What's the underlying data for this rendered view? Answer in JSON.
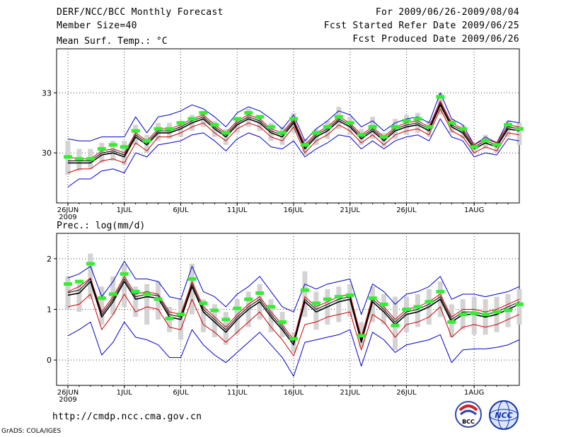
{
  "header": {
    "title": "DERF/NCC/BCC Monthly Forecast",
    "member_size": "Member Size=40",
    "period": "For 2009/06/26-2009/08/04",
    "fcst_started": "Fcst Started Refer Date 2009/06/25",
    "fcst_produced": "Fcst Produced Date 2009/06/26"
  },
  "footer": {
    "url": "http://cmdp.ncc.cma.gov.cn",
    "grads": "GrADS: COLA/IGES",
    "logo_bcc": "BCC",
    "logo_ncc": "NCC"
  },
  "colors": {
    "ensemble_mean": "#000000",
    "inner_range": "#cc0000",
    "outer_range": "#0000cc",
    "spread_bar": "#d3d3d3",
    "observed_marker": "#33ee33",
    "grid": "#444444"
  },
  "chart_data": [
    {
      "type": "line",
      "panel": "top",
      "title": "Mean Surf. Temp.: °C",
      "xlabel": "",
      "ylabel": "°C",
      "x_ticks": [
        {
          "day": 0,
          "label": "26JUN",
          "sub": "2009"
        },
        {
          "day": 5,
          "label": "1JUL"
        },
        {
          "day": 10,
          "label": "6JUL"
        },
        {
          "day": 15,
          "label": "11JUL"
        },
        {
          "day": 20,
          "label": "16JUL"
        },
        {
          "day": 25,
          "label": "21JUL"
        },
        {
          "day": 30,
          "label": "26JUL"
        },
        {
          "day": 36,
          "label": "1AUG"
        }
      ],
      "y_ticks": [
        30,
        33
      ],
      "ylim": [
        27.5,
        35.2
      ],
      "xlim": [
        -1,
        40
      ],
      "grid": true,
      "series": [
        {
          "name": "ensemble mean",
          "role": "mean",
          "values": [
            29.5,
            29.5,
            29.5,
            29.9,
            30.0,
            29.8,
            30.8,
            30.4,
            31.0,
            31.0,
            31.2,
            31.5,
            31.7,
            31.2,
            30.8,
            31.4,
            31.7,
            31.5,
            31.0,
            30.8,
            31.5,
            30.2,
            30.8,
            31.1,
            31.6,
            31.3,
            30.7,
            31.1,
            30.6,
            31.1,
            31.3,
            31.4,
            31.1,
            32.4,
            31.3,
            31.0,
            30.2,
            30.5,
            30.3,
            31.2,
            31.1
          ]
        },
        {
          "name": "upper black",
          "role": "mean_upper",
          "values": [
            29.6,
            29.6,
            29.6,
            30.0,
            30.1,
            29.9,
            30.9,
            30.5,
            31.1,
            31.1,
            31.3,
            31.6,
            31.8,
            31.3,
            30.9,
            31.5,
            31.8,
            31.6,
            31.1,
            30.9,
            31.6,
            30.3,
            30.9,
            31.2,
            31.7,
            31.4,
            30.8,
            31.2,
            30.7,
            31.2,
            31.4,
            31.5,
            31.2,
            32.5,
            31.4,
            31.1,
            30.3,
            30.6,
            30.4,
            31.3,
            31.2
          ]
        },
        {
          "name": "lower red",
          "role": "inner",
          "values": [
            29.0,
            29.2,
            29.2,
            29.6,
            29.7,
            29.5,
            30.5,
            30.1,
            30.8,
            30.8,
            31.0,
            31.3,
            31.5,
            31.0,
            30.6,
            31.2,
            31.5,
            31.3,
            30.8,
            30.6,
            31.3,
            30.0,
            30.6,
            30.9,
            31.4,
            31.1,
            30.5,
            30.9,
            30.4,
            30.9,
            31.1,
            31.2,
            30.9,
            32.2,
            31.1,
            30.8,
            30.0,
            30.3,
            30.1,
            31.0,
            30.9
          ]
        },
        {
          "name": "upper red",
          "role": "inner",
          "values": [
            29.8,
            29.7,
            29.7,
            30.1,
            30.2,
            30.0,
            31.0,
            30.6,
            31.2,
            31.2,
            31.4,
            31.7,
            31.9,
            31.4,
            31.0,
            31.6,
            31.9,
            31.7,
            31.2,
            31.0,
            31.7,
            30.4,
            31.0,
            31.3,
            31.8,
            31.5,
            30.9,
            31.3,
            30.8,
            31.3,
            31.5,
            31.6,
            31.3,
            32.6,
            31.5,
            31.2,
            30.4,
            30.7,
            30.5,
            31.4,
            31.3
          ]
        },
        {
          "name": "lower blue",
          "role": "outer",
          "values": [
            28.3,
            28.7,
            28.7,
            29.1,
            29.2,
            29.0,
            30.0,
            29.8,
            30.4,
            30.5,
            30.6,
            30.9,
            31.0,
            30.6,
            30.1,
            30.7,
            31.0,
            30.8,
            30.3,
            30.2,
            30.6,
            29.8,
            30.2,
            30.5,
            30.9,
            30.8,
            30.2,
            30.6,
            30.2,
            30.6,
            30.8,
            30.9,
            30.6,
            31.7,
            30.8,
            30.6,
            29.8,
            30.0,
            29.9,
            30.7,
            30.6
          ]
        },
        {
          "name": "upper blue",
          "role": "outer",
          "values": [
            30.7,
            30.6,
            30.6,
            30.8,
            30.8,
            30.8,
            31.8,
            31.0,
            31.8,
            31.9,
            32.1,
            32.4,
            32.2,
            31.8,
            31.3,
            32.0,
            32.3,
            32.1,
            31.7,
            31.2,
            31.9,
            30.6,
            31.2,
            31.6,
            32.1,
            31.9,
            31.3,
            31.6,
            31.1,
            31.5,
            31.7,
            31.8,
            31.5,
            33.0,
            31.7,
            31.4,
            30.4,
            30.8,
            30.5,
            31.6,
            31.5
          ]
        },
        {
          "name": "spread low",
          "role": "spread_low",
          "values": [
            28.9,
            29.1,
            29.2,
            29.5,
            29.6,
            29.4,
            30.4,
            30.0,
            30.6,
            30.7,
            30.8,
            31.1,
            31.3,
            30.8,
            30.4,
            31.0,
            31.3,
            31.1,
            30.6,
            30.4,
            31.0,
            29.9,
            30.4,
            30.7,
            31.2,
            30.9,
            30.4,
            30.7,
            30.3,
            30.7,
            30.9,
            31.0,
            30.8,
            31.9,
            31.0,
            30.7,
            30.0,
            30.2,
            30.0,
            30.8,
            30.4
          ]
        },
        {
          "name": "spread high",
          "role": "spread_high",
          "values": [
            30.6,
            30.2,
            30.2,
            30.5,
            30.6,
            30.6,
            31.4,
            30.9,
            31.5,
            31.5,
            31.6,
            31.9,
            32.1,
            31.6,
            31.2,
            31.8,
            32.2,
            31.9,
            31.5,
            31.3,
            32.0,
            30.7,
            31.2,
            31.6,
            32.3,
            31.8,
            31.2,
            31.8,
            31.0,
            31.7,
            31.9,
            32.0,
            31.6,
            33.0,
            31.7,
            31.4,
            30.5,
            30.9,
            30.6,
            31.6,
            31.5
          ]
        },
        {
          "name": "observed",
          "role": "marker",
          "values": [
            29.8,
            29.7,
            29.7,
            30.2,
            30.4,
            30.3,
            31.1,
            30.6,
            31.2,
            31.2,
            31.5,
            31.7,
            32.0,
            31.4,
            31.0,
            31.7,
            32.0,
            31.8,
            31.3,
            31.0,
            31.7,
            30.4,
            31.0,
            31.3,
            31.8,
            31.5,
            30.9,
            31.3,
            30.8,
            31.3,
            31.6,
            31.7,
            31.3,
            32.8,
            31.5,
            31.2,
            30.3,
            30.6,
            30.4,
            31.4,
            31.2
          ]
        }
      ]
    },
    {
      "type": "line",
      "panel": "bottom",
      "title": "Prec.: log(mm/d)",
      "xlabel": "",
      "ylabel": "log(mm/d)",
      "x_ticks": [
        {
          "day": 0,
          "label": "26JUN",
          "sub": "2009"
        },
        {
          "day": 5,
          "label": "1JUL"
        },
        {
          "day": 10,
          "label": "6JUL"
        },
        {
          "day": 15,
          "label": "11JUL"
        },
        {
          "day": 20,
          "label": "16JUL"
        },
        {
          "day": 25,
          "label": "21JUL"
        },
        {
          "day": 30,
          "label": "26JUL"
        },
        {
          "day": 36,
          "label": "1AUG"
        }
      ],
      "y_ticks": [
        0,
        1,
        2
      ],
      "ylim": [
        -0.5,
        2.5
      ],
      "xlim": [
        -1,
        40
      ],
      "grid": true,
      "series": [
        {
          "name": "ensemble mean",
          "role": "mean",
          "values": [
            1.28,
            1.32,
            1.55,
            0.85,
            1.15,
            1.55,
            1.2,
            1.25,
            1.22,
            0.85,
            0.8,
            1.45,
            0.95,
            0.75,
            0.55,
            0.8,
            1.0,
            1.15,
            0.85,
            0.6,
            0.3,
            1.15,
            0.95,
            1.05,
            1.15,
            1.2,
            0.35,
            1.15,
            0.95,
            0.7,
            0.9,
            0.95,
            1.05,
            1.2,
            0.75,
            0.9,
            0.9,
            0.85,
            0.9,
            1.0,
            1.1
          ]
        },
        {
          "name": "upper black",
          "role": "mean_upper",
          "values": [
            1.33,
            1.38,
            1.6,
            0.9,
            1.2,
            1.6,
            1.25,
            1.3,
            1.27,
            0.9,
            0.85,
            1.5,
            1.0,
            0.8,
            0.6,
            0.85,
            1.05,
            1.2,
            0.9,
            0.65,
            0.35,
            1.2,
            1.0,
            1.1,
            1.2,
            1.25,
            0.4,
            1.2,
            1.0,
            0.75,
            0.95,
            1.0,
            1.1,
            1.25,
            0.8,
            0.95,
            0.95,
            0.9,
            0.95,
            1.05,
            1.15
          ]
        },
        {
          "name": "lower red",
          "role": "inner",
          "values": [
            1.05,
            1.1,
            1.3,
            0.6,
            0.9,
            1.3,
            0.95,
            1.05,
            1.0,
            0.65,
            0.6,
            1.2,
            0.7,
            0.55,
            0.35,
            0.55,
            0.75,
            0.95,
            0.65,
            0.4,
            0.08,
            0.7,
            0.75,
            0.85,
            0.9,
            0.95,
            0.2,
            0.9,
            0.75,
            0.45,
            0.7,
            0.75,
            0.85,
            1.05,
            0.45,
            0.65,
            0.7,
            0.65,
            0.7,
            0.8,
            0.9
          ]
        },
        {
          "name": "upper red",
          "role": "inner",
          "values": [
            1.35,
            1.45,
            1.62,
            0.95,
            1.25,
            1.65,
            1.3,
            1.35,
            1.3,
            0.95,
            0.9,
            1.55,
            1.05,
            0.85,
            0.65,
            0.9,
            1.1,
            1.25,
            0.95,
            0.7,
            0.4,
            1.25,
            1.05,
            1.15,
            1.25,
            1.3,
            0.45,
            1.25,
            1.05,
            0.8,
            1.0,
            1.05,
            1.15,
            1.3,
            0.85,
            1.0,
            1.0,
            0.95,
            1.0,
            1.1,
            1.2
          ]
        },
        {
          "name": "lower blue",
          "role": "outer",
          "values": [
            0.48,
            0.6,
            0.75,
            0.1,
            0.35,
            0.75,
            0.45,
            0.4,
            0.3,
            0.05,
            0.05,
            0.6,
            0.3,
            0.1,
            -0.05,
            0.15,
            0.35,
            0.55,
            0.3,
            0.05,
            -0.32,
            0.35,
            0.4,
            0.45,
            0.5,
            0.6,
            -0.12,
            0.55,
            0.4,
            0.15,
            0.3,
            0.35,
            0.4,
            0.5,
            -0.05,
            0.2,
            0.22,
            0.22,
            0.25,
            0.3,
            0.4
          ]
        },
        {
          "name": "upper blue",
          "role": "outer",
          "values": [
            1.62,
            1.7,
            1.85,
            1.25,
            1.55,
            1.95,
            1.6,
            1.6,
            1.55,
            1.25,
            1.2,
            1.85,
            1.35,
            1.25,
            1.05,
            1.3,
            1.45,
            1.65,
            1.35,
            1.05,
            0.95,
            1.5,
            1.4,
            1.5,
            1.55,
            1.6,
            0.9,
            1.5,
            1.35,
            1.1,
            1.3,
            1.35,
            1.45,
            1.65,
            1.2,
            1.3,
            1.3,
            1.25,
            1.3,
            1.35,
            1.45
          ]
        },
        {
          "name": "spread low",
          "role": "spread_low",
          "values": [
            1.0,
            0.95,
            1.2,
            0.7,
            0.9,
            1.05,
            0.85,
            0.7,
            0.8,
            0.55,
            0.4,
            0.9,
            0.55,
            0.45,
            0.3,
            0.5,
            0.65,
            0.8,
            0.55,
            0.45,
            0.15,
            0.85,
            0.6,
            0.7,
            0.75,
            0.85,
            0.25,
            0.75,
            0.7,
            0.2,
            0.55,
            0.65,
            0.7,
            0.85,
            0.45,
            0.6,
            0.5,
            0.5,
            0.55,
            0.65,
            0.7
          ]
        },
        {
          "name": "spread high",
          "role": "spread_high",
          "values": [
            1.65,
            1.55,
            2.1,
            1.45,
            1.65,
            1.9,
            1.45,
            1.5,
            1.55,
            1.05,
            1.2,
            1.9,
            1.2,
            1.1,
            0.95,
            1.2,
            1.35,
            1.5,
            1.2,
            0.95,
            0.55,
            1.75,
            1.35,
            1.4,
            1.45,
            1.5,
            0.75,
            1.45,
            1.3,
            1.25,
            1.25,
            1.3,
            1.4,
            1.55,
            1.1,
            1.2,
            1.25,
            1.2,
            1.25,
            1.3,
            1.4
          ]
        },
        {
          "name": "observed",
          "role": "marker",
          "values": [
            1.5,
            1.55,
            1.9,
            1.22,
            1.3,
            1.7,
            1.35,
            1.3,
            1.2,
            0.82,
            0.9,
            1.6,
            1.12,
            0.98,
            0.8,
            1.02,
            1.2,
            1.32,
            1.05,
            0.75,
            0.42,
            1.38,
            1.12,
            1.2,
            1.25,
            1.28,
            0.48,
            1.22,
            1.1,
            0.68,
            1.0,
            1.05,
            1.15,
            1.35,
            0.75,
            0.9,
            0.92,
            0.9,
            0.95,
            0.98,
            1.1
          ]
        }
      ]
    }
  ]
}
